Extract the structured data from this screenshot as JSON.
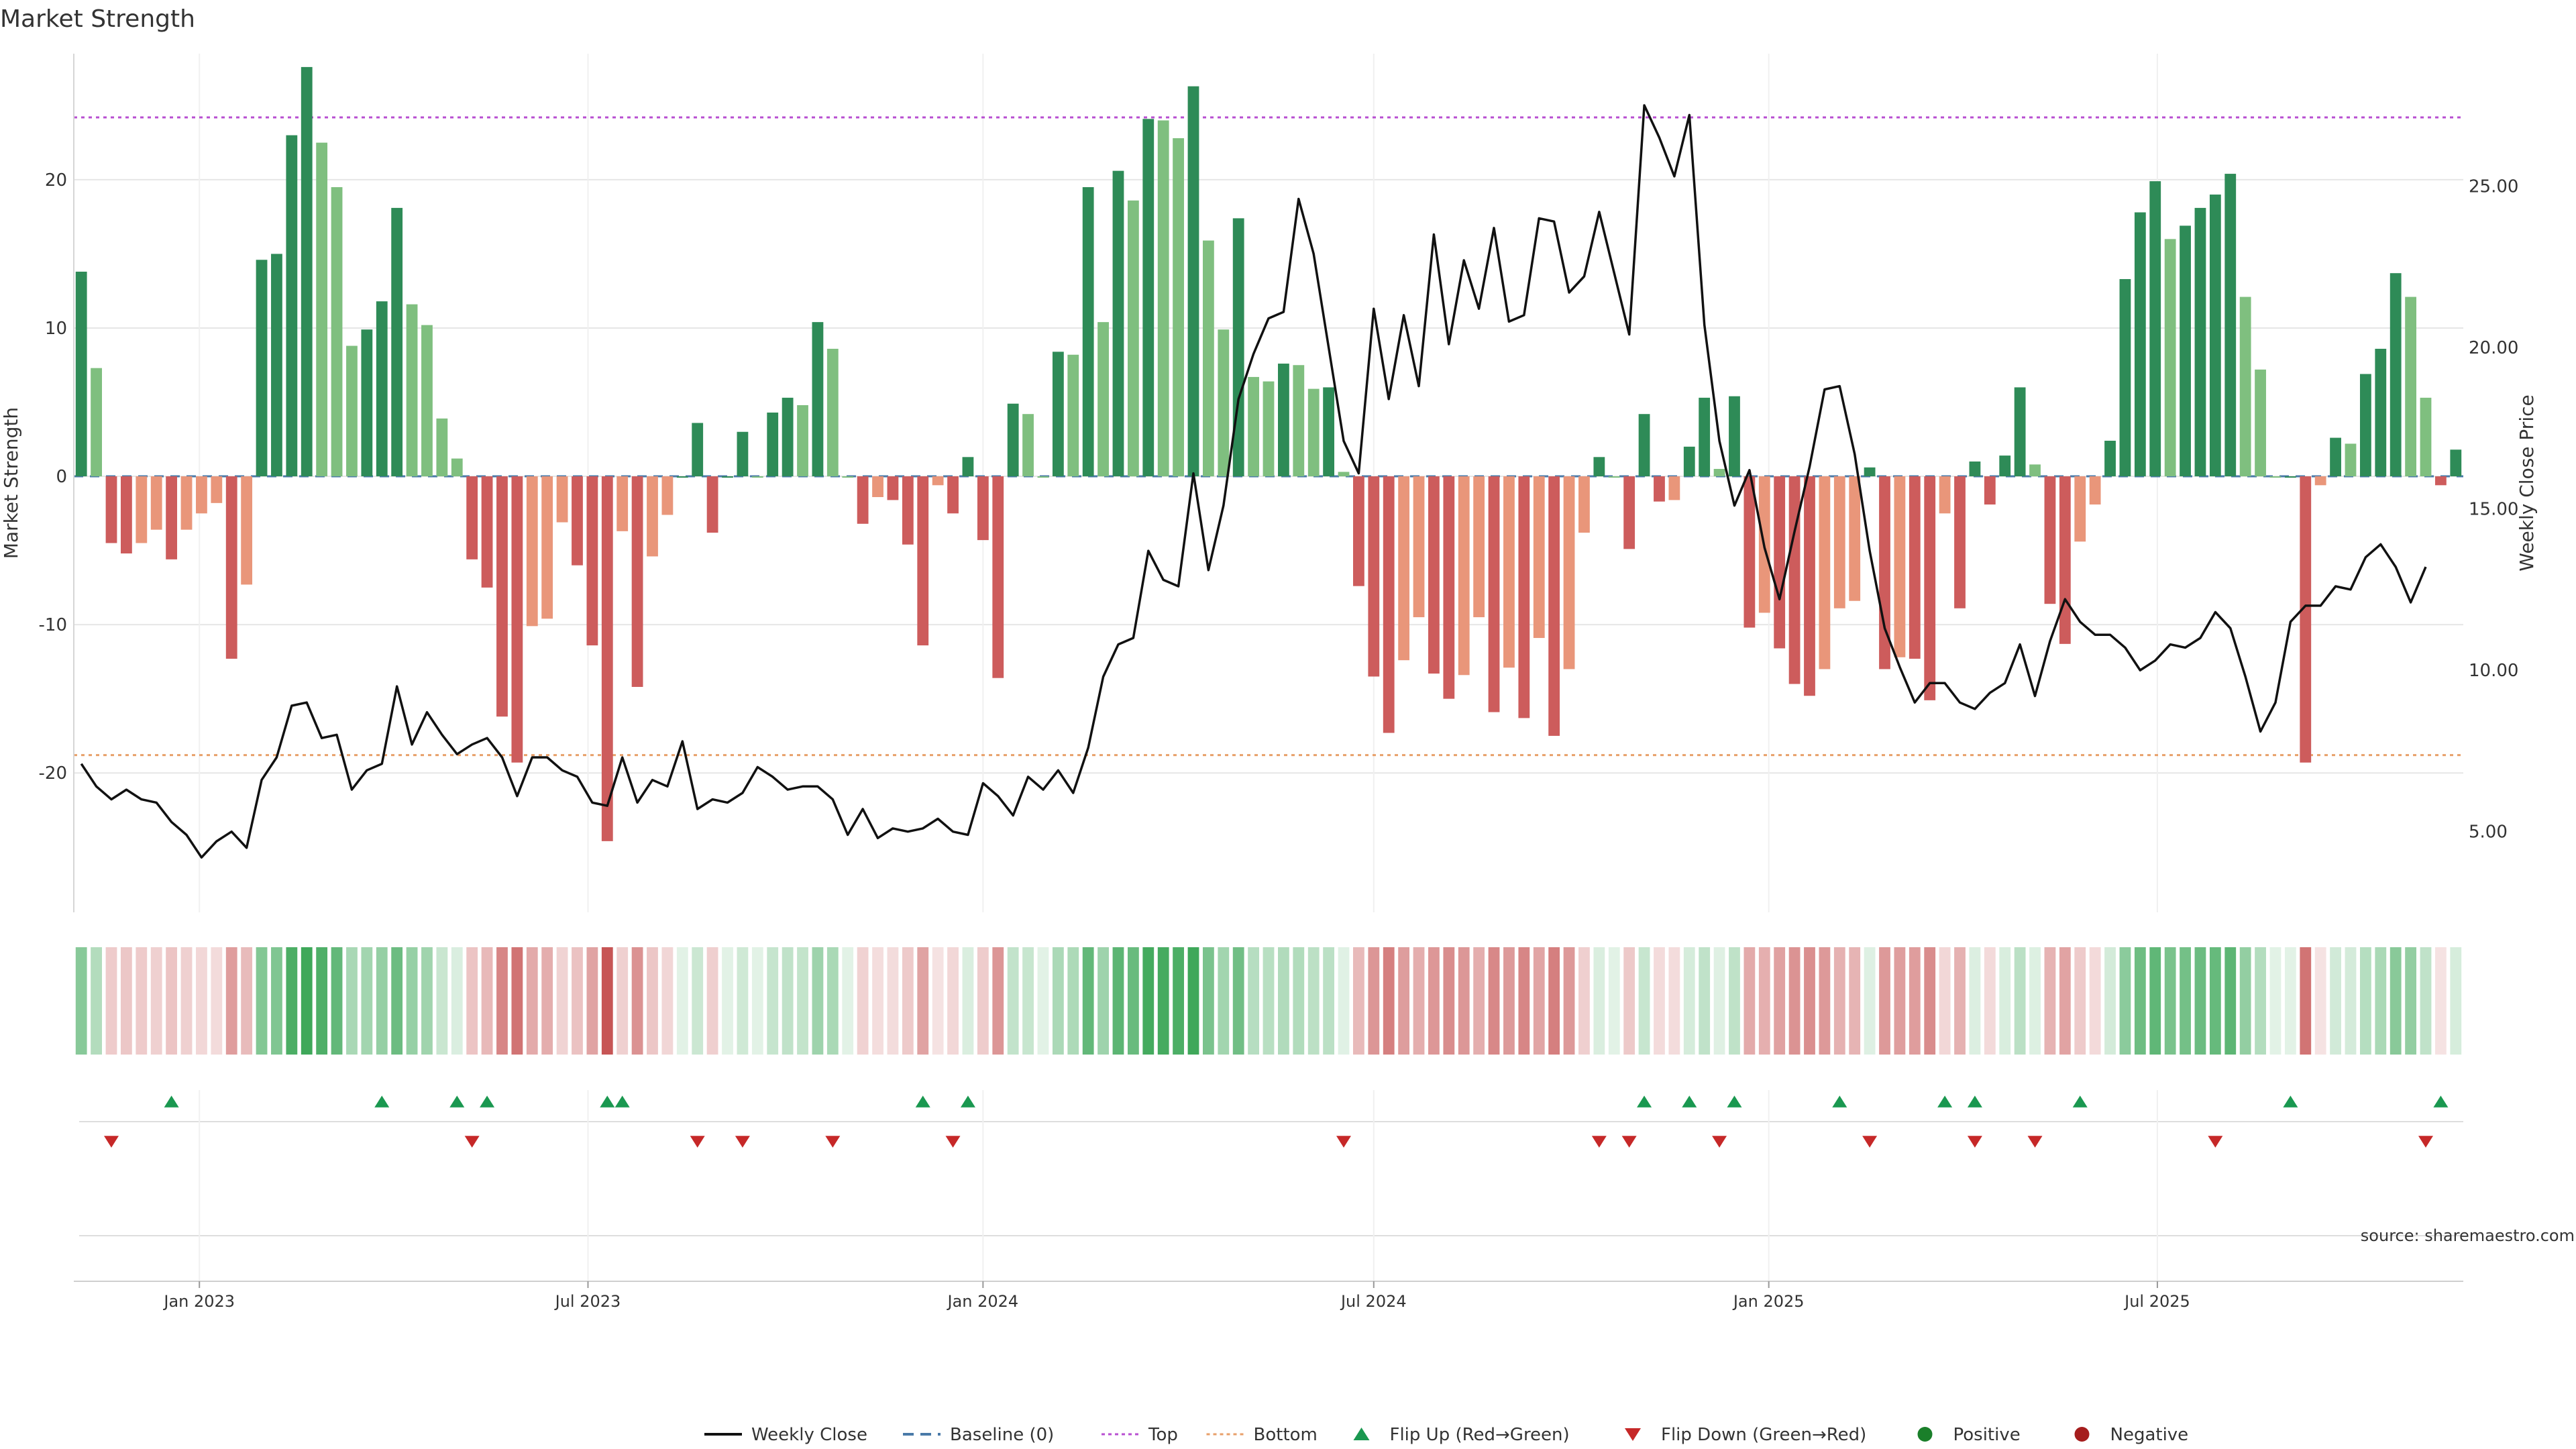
{
  "chart_data": {
    "type": "bar",
    "title": "Market Strength",
    "ylabel_left": "Market Strength",
    "ylabel_right": "Weekly Close Price",
    "source": "source: sharemaestro.com",
    "start_date": "2022-11-07",
    "interval_days": 7,
    "left_axis": {
      "ylim": [
        -29.4,
        28.5
      ],
      "ticks": [
        20,
        10,
        0,
        -10,
        -20
      ],
      "tick_labels": [
        "20",
        "10",
        "0",
        "-10",
        "-20"
      ]
    },
    "right_axis": {
      "ylim": [
        2.5,
        29.1
      ],
      "ticks": [
        25,
        20,
        15,
        10,
        5
      ],
      "tick_labels": [
        "25.00",
        "20.00",
        "15.00",
        "10.00",
        "5.00"
      ]
    },
    "x_ticks": [
      {
        "label": "Jan 2023",
        "date": "2023-01-01"
      },
      {
        "label": "Jul 2023",
        "date": "2023-07-01"
      },
      {
        "label": "Jan 2024",
        "date": "2024-01-01"
      },
      {
        "label": "Jul 2024",
        "date": "2024-07-01"
      },
      {
        "label": "Jan 2025",
        "date": "2025-01-01"
      },
      {
        "label": "Jul 2025",
        "date": "2025-07-01"
      }
    ],
    "reference_lines": {
      "top": 24.2,
      "bottom": -18.8,
      "baseline": 0
    },
    "market_strength": [
      13.8,
      7.3,
      -4.5,
      -5.2,
      -4.5,
      -3.6,
      -5.6,
      -3.6,
      -2.5,
      -1.8,
      -12.3,
      -7.3,
      14.6,
      15.0,
      23.0,
      27.6,
      22.5,
      19.5,
      8.8,
      9.9,
      11.8,
      18.1,
      11.6,
      10.2,
      3.9,
      1.2,
      -5.6,
      -7.5,
      -16.2,
      -19.3,
      -10.1,
      -9.6,
      -3.1,
      -6.0,
      -11.4,
      -24.6,
      -3.7,
      -14.2,
      -5.4,
      -2.6,
      0,
      3.6,
      -3.8,
      0,
      3.0,
      0,
      4.3,
      5.3,
      4.8,
      10.4,
      8.6,
      0,
      -3.2,
      -1.4,
      -1.6,
      -4.6,
      -11.4,
      -0.6,
      -2.5,
      1.3,
      -4.3,
      -13.6,
      4.9,
      4.2,
      0,
      8.4,
      8.2,
      19.5,
      10.4,
      20.6,
      18.6,
      24.1,
      24.0,
      22.8,
      26.3,
      15.9,
      9.9,
      17.4,
      6.7,
      6.4,
      7.6,
      7.5,
      5.9,
      6.0,
      0.3,
      -7.4,
      -13.5,
      -17.3,
      -12.4,
      -9.5,
      -13.3,
      -15.0,
      -13.4,
      -9.5,
      -15.9,
      -12.9,
      -16.3,
      -10.9,
      -17.5,
      -13.0,
      -3.8,
      1.3,
      0,
      -4.9,
      4.2,
      -1.7,
      -1.6,
      2.0,
      5.3,
      0.5,
      5.4,
      -10.2,
      -9.2,
      -11.6,
      -14.0,
      -14.8,
      -13.0,
      -8.9,
      -8.4,
      0.6,
      -13.0,
      -12.2,
      -12.3,
      -15.1,
      -2.5,
      -8.9,
      1.0,
      -1.9,
      1.4,
      6.0,
      0.8,
      -8.6,
      -11.3,
      -4.4,
      -1.9,
      2.4,
      13.3,
      17.8,
      19.9,
      16.0,
      16.9,
      18.1,
      19.0,
      20.4,
      12.1,
      7.2,
      0,
      0,
      -19.3,
      -0.6,
      2.6,
      2.2,
      6.9,
      8.6,
      13.7,
      12.1,
      5.3,
      -0.6,
      1.8
    ],
    "series": [
      {
        "name": "Weekly Close",
        "axis": "right",
        "values": [
          7.1,
          6.4,
          6.0,
          6.3,
          6.0,
          5.9,
          5.3,
          4.9,
          4.2,
          4.7,
          5.0,
          4.5,
          6.6,
          7.3,
          8.9,
          9.0,
          7.9,
          8.0,
          6.3,
          6.9,
          7.1,
          9.5,
          7.7,
          8.7,
          8.0,
          7.4,
          7.7,
          7.9,
          7.3,
          6.1,
          7.3,
          7.3,
          6.9,
          6.7,
          5.9,
          5.8,
          7.3,
          5.9,
          6.6,
          6.4,
          7.8,
          5.7,
          6.0,
          5.9,
          6.2,
          7.0,
          6.7,
          6.3,
          6.4,
          6.4,
          6.0,
          4.9,
          5.7,
          4.8,
          5.1,
          5.0,
          5.1,
          5.4,
          5.0,
          4.9,
          6.5,
          6.1,
          5.5,
          6.7,
          6.3,
          6.9,
          6.2,
          7.6,
          9.8,
          10.8,
          11.0,
          13.7,
          12.8,
          12.6,
          16.1,
          13.1,
          15.1,
          18.4,
          19.8,
          20.9,
          21.1,
          24.6,
          22.9,
          20.0,
          17.1,
          16.1,
          21.2,
          18.4,
          21.0,
          18.8,
          23.5,
          20.1,
          22.7,
          21.2,
          23.7,
          20.8,
          21.0,
          24.0,
          23.9,
          21.7,
          22.2,
          24.2,
          22.3,
          20.4,
          27.5,
          26.5,
          25.3,
          27.2,
          20.7,
          17.1,
          15.1,
          16.2,
          13.8,
          12.2,
          14.3,
          16.3,
          18.7,
          18.8,
          16.7,
          13.7,
          11.3,
          10.1,
          9.0,
          9.6,
          9.6,
          9.0,
          8.8,
          9.3,
          9.6,
          10.8,
          9.2,
          10.9,
          12.2,
          11.5,
          11.1,
          11.1,
          10.7,
          10.0,
          10.3,
          10.8,
          10.7,
          11.0,
          11.8,
          11.3,
          9.8,
          8.1,
          9.0,
          11.5,
          12.0,
          12.0,
          12.6,
          12.5,
          13.5,
          13.9,
          13.2,
          12.1,
          13.2
        ],
        "color": "#111111"
      }
    ],
    "flip_up_index": [
      6,
      20,
      25,
      27,
      35,
      36,
      56,
      59,
      104,
      107,
      110,
      117,
      124,
      126,
      133,
      147,
      157
    ],
    "flip_down_index": [
      2,
      26,
      41,
      44,
      50,
      58,
      84,
      101,
      103,
      109,
      119,
      126,
      130,
      142,
      156
    ],
    "colors": {
      "strong_green": "#2e8b57",
      "light_green": "#7fbf7f",
      "strong_red": "#cd5c5c",
      "light_red": "#e9967a",
      "top_line": "#b84fd1",
      "bottom_line": "#e8a06a",
      "baseline": "#4a7aa8",
      "flip_up": "#1a9850",
      "flip_down": "#c62828",
      "positive_dot": "#1a7f2a",
      "negative_dot": "#a51d1d"
    },
    "legend": [
      {
        "label": "Weekly Close",
        "kind": "line",
        "color": "#111111"
      },
      {
        "label": "Baseline (0)",
        "kind": "dashed",
        "color": "#4a7aa8"
      },
      {
        "label": "Top",
        "kind": "dotted",
        "color": "#b84fd1"
      },
      {
        "label": "Bottom",
        "kind": "dotted",
        "color": "#e8a06a"
      },
      {
        "label": "Flip Up (Red→Green)",
        "kind": "tri-up",
        "color": "#1a9850"
      },
      {
        "label": "Flip Down (Green→Red)",
        "kind": "tri-down",
        "color": "#c62828"
      },
      {
        "label": "Positive",
        "kind": "dot",
        "color": "#1a7f2a"
      },
      {
        "label": "Negative",
        "kind": "dot",
        "color": "#a51d1d"
      }
    ],
    "legend_position": "bottom-center",
    "grid": true
  }
}
